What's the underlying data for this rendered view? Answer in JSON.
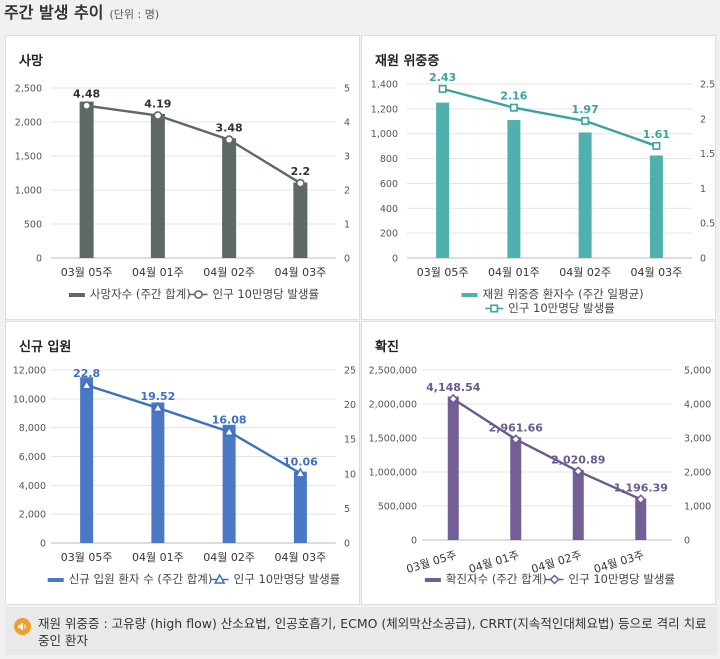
{
  "header": {
    "title": "주간 발생 추이",
    "unit": "(단위 : 명)"
  },
  "footer": {
    "note": "재원 위중증 : 고유량 (high flow) 산소요법, 인공호흡기, ECMO (체외막산소공급), CRRT(지속적인대체요법) 등으로 격리 치료 중인 환자"
  },
  "icons": {
    "footer": "speaker-icon"
  },
  "chart_data": [
    {
      "id": "death",
      "type": "bar+line",
      "title": "사망",
      "categories": [
        "03월 05주",
        "04월 01주",
        "04월 02주",
        "04월 03주"
      ],
      "bar_series": {
        "name": "사망자수 (주간 합계)",
        "values": [
          2300,
          2120,
          1760,
          1110
        ],
        "color": "#5e6864"
      },
      "line_series": {
        "name": "인구 10만명당 발생률",
        "values": [
          4.48,
          4.19,
          3.48,
          2.2
        ],
        "labels": [
          "4.48",
          "4.19",
          "3.48",
          "2.2"
        ],
        "color": "#5e6864",
        "marker": "circle"
      },
      "left_axis": {
        "min": 0,
        "max": 2500,
        "ticks": [
          "0",
          "500",
          "1,000",
          "1,500",
          "2,000",
          "2,500"
        ]
      },
      "right_axis": {
        "min": 0,
        "max": 5,
        "ticks": [
          "0",
          "1",
          "2",
          "3",
          "4",
          "5"
        ]
      },
      "legend": "bottom"
    },
    {
      "id": "severe",
      "type": "bar+line",
      "title": "재원 위중증",
      "categories": [
        "03월 05주",
        "04월 01주",
        "04월 02주",
        "04월 03주"
      ],
      "bar_series": {
        "name": "재원 위중증 환자수 (주간 일평균)",
        "values": [
          1250,
          1110,
          1010,
          825
        ],
        "color": "#4fb0ad"
      },
      "line_series": {
        "name": "인구 10만명당 발생률",
        "values": [
          2.43,
          2.16,
          1.97,
          1.61
        ],
        "labels": [
          "2.43",
          "2.16",
          "1.97",
          "1.61"
        ],
        "color": "#3ba3a3",
        "marker": "square"
      },
      "left_axis": {
        "min": 0,
        "max": 1400,
        "ticks": [
          "0",
          "200",
          "400",
          "600",
          "800",
          "1,000",
          "1,200",
          "1,400"
        ]
      },
      "right_axis": {
        "min": 0,
        "max": 2.5,
        "ticks": [
          "0",
          "0.5",
          "1",
          "1.5",
          "2",
          "2.5"
        ]
      },
      "legend": "bottom"
    },
    {
      "id": "admission",
      "type": "bar+line",
      "title": "신규 입원",
      "categories": [
        "03월 05주",
        "04월 01주",
        "04월 02주",
        "04월 03주"
      ],
      "bar_series": {
        "name": "신규 입원 환자 수 (주간 합계)",
        "values": [
          11500,
          9750,
          8200,
          4950
        ],
        "color": "#4a78c4"
      },
      "line_series": {
        "name": "인구 10만명당 발생률",
        "values": [
          22.8,
          19.52,
          16.08,
          10.06
        ],
        "labels": [
          "22.8",
          "19.52",
          "16.08",
          "10.06"
        ],
        "color": "#3e6fc0",
        "marker": "triangle"
      },
      "left_axis": {
        "min": 0,
        "max": 12000,
        "ticks": [
          "0",
          "2,000",
          "4,000",
          "6,000",
          "8,000",
          "10,000",
          "12,000"
        ]
      },
      "right_axis": {
        "min": 0,
        "max": 25,
        "ticks": [
          "0",
          "5",
          "10",
          "15",
          "20",
          "25"
        ]
      },
      "legend": "bottom"
    },
    {
      "id": "confirmed",
      "type": "bar+line",
      "title": "확진",
      "categories": [
        "03월 05주",
        "04월 01주",
        "04월 02주",
        "04월 03주"
      ],
      "bar_series": {
        "name": "확진자수 (주간 합계)",
        "values": [
          2110000,
          1510000,
          1030000,
          610000
        ],
        "color": "#735f96"
      },
      "line_series": {
        "name": "인구 10만명당 발생률",
        "values": [
          4148.54,
          2961.66,
          2020.89,
          1196.39
        ],
        "labels": [
          "4,148.54",
          "2,961.66",
          "2,020.89",
          "1,196.39"
        ],
        "color": "#6a5a90",
        "marker": "diamond"
      },
      "left_axis": {
        "min": 0,
        "max": 2500000,
        "ticks": [
          "0",
          "500,000",
          "1,000,000",
          "1,500,000",
          "2,000,000",
          "2,500,000"
        ]
      },
      "right_axis": {
        "min": 0,
        "max": 5000,
        "ticks": [
          "0",
          "1,000",
          "2,000",
          "3,000",
          "4,000",
          "5,000"
        ]
      },
      "x_labels_rotated": true,
      "legend": "bottom"
    }
  ]
}
